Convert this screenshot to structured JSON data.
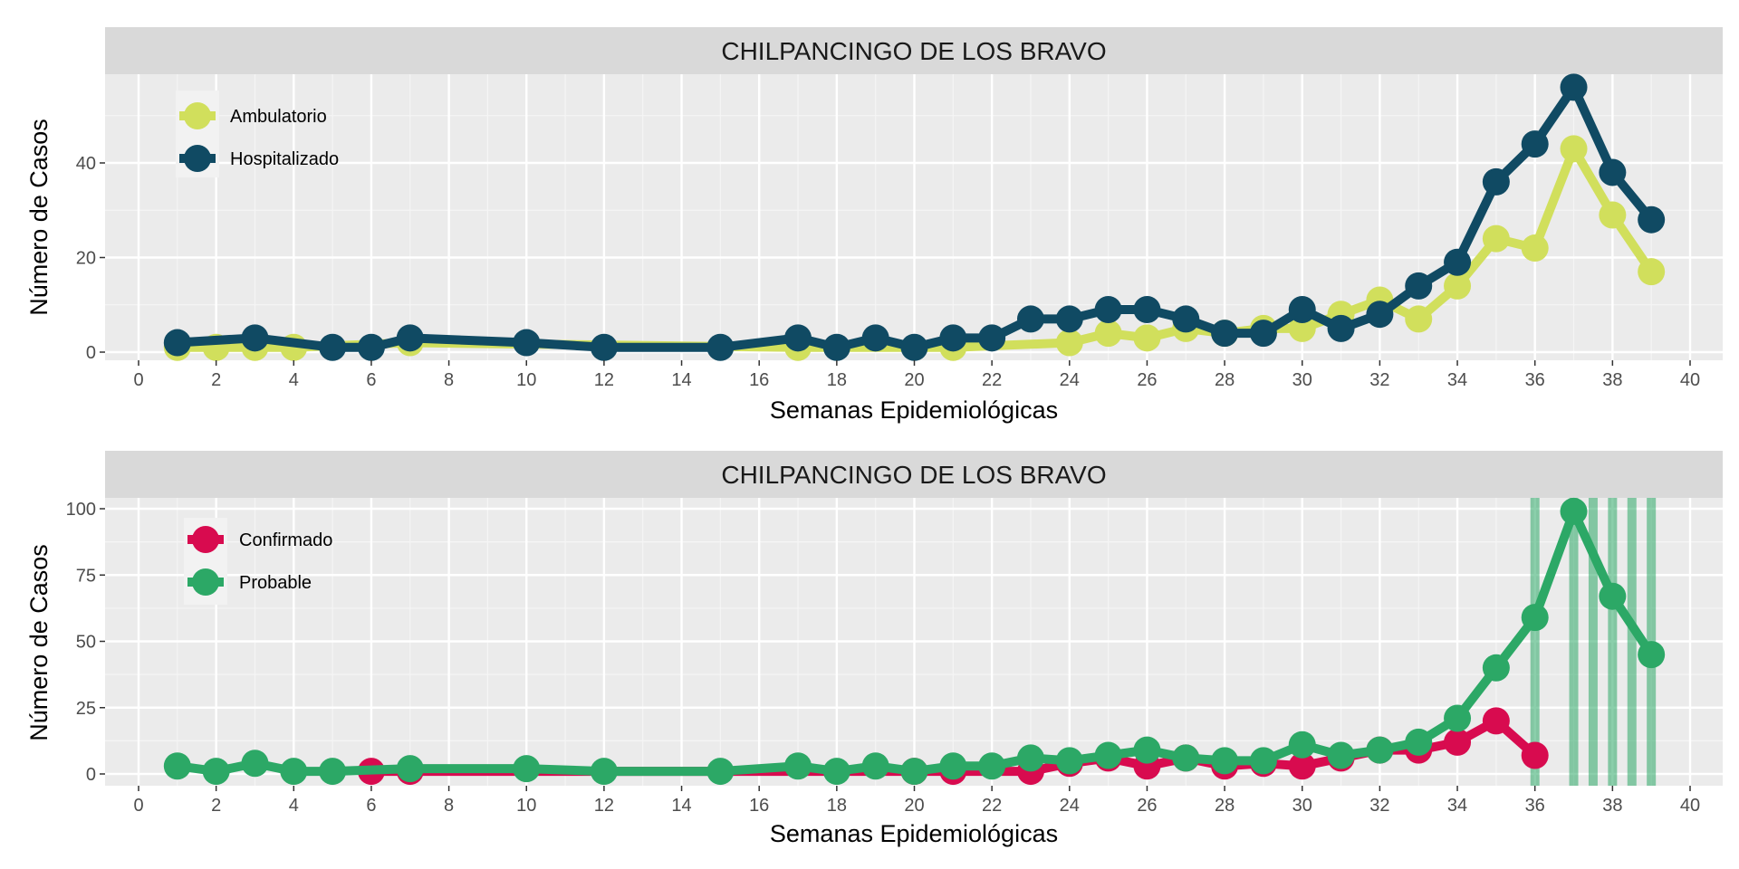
{
  "colors": {
    "ambulatorio": "#d1df5c",
    "hospitalizado": "#104a63",
    "confirmado": "#d80b4f",
    "probable": "#2ca866"
  },
  "chart_data": [
    {
      "type": "line",
      "title": "CHILPANCINGO DE LOS BRAVO",
      "xlabel": "Semanas Epidemiológicas",
      "ylabel": "Número de Casos",
      "xlim": [
        0,
        40
      ],
      "ylim": [
        0,
        56
      ],
      "xticks": [
        0,
        2,
        4,
        6,
        8,
        10,
        12,
        14,
        16,
        18,
        20,
        22,
        24,
        26,
        28,
        30,
        32,
        34,
        36,
        38,
        40
      ],
      "yticks": [
        0,
        20,
        40
      ],
      "grid": true,
      "legend_position": "top-left",
      "series": [
        {
          "name": "Ambulatorio",
          "color_key": "ambulatorio",
          "x": [
            1,
            2,
            3,
            4,
            7,
            17,
            21,
            24,
            25,
            26,
            27,
            28,
            29,
            30,
            31,
            32,
            33,
            34,
            35,
            36,
            37,
            38,
            39
          ],
          "y": [
            1,
            1,
            1,
            1,
            2,
            1,
            1,
            2,
            4,
            3,
            5,
            4,
            5,
            5,
            8,
            11,
            7,
            14,
            24,
            22,
            43,
            29,
            17
          ]
        },
        {
          "name": "Hospitalizado",
          "color_key": "hospitalizado",
          "x": [
            1,
            3,
            5,
            6,
            7,
            10,
            12,
            15,
            17,
            18,
            19,
            20,
            21,
            22,
            23,
            24,
            25,
            26,
            27,
            28,
            29,
            30,
            31,
            32,
            33,
            34,
            35,
            36,
            37,
            38,
            39
          ],
          "y": [
            2,
            3,
            1,
            1,
            3,
            2,
            1,
            1,
            3,
            1,
            3,
            1,
            3,
            3,
            7,
            7,
            9,
            9,
            7,
            4,
            4,
            9,
            5,
            8,
            14,
            19,
            36,
            44,
            56,
            38,
            28
          ]
        }
      ]
    },
    {
      "type": "line",
      "title": "CHILPANCINGO DE LOS BRAVO",
      "xlabel": "Semanas Epidemiológicas",
      "ylabel": "Número de Casos",
      "xlim": [
        0,
        40
      ],
      "ylim": [
        0,
        100
      ],
      "xticks": [
        0,
        2,
        4,
        6,
        8,
        10,
        12,
        14,
        16,
        18,
        20,
        22,
        24,
        26,
        28,
        30,
        32,
        34,
        36,
        38,
        40
      ],
      "yticks": [
        0,
        25,
        50,
        75,
        100
      ],
      "grid": true,
      "legend_position": "top-left",
      "vlines": [
        36,
        37,
        37.5,
        38,
        38.5,
        39
      ],
      "series": [
        {
          "name": "Confirmado",
          "color_key": "confirmado",
          "x": [
            6,
            7,
            20,
            21,
            23,
            24,
            25,
            26,
            27,
            28,
            29,
            30,
            31,
            32,
            33,
            34,
            35,
            36
          ],
          "y": [
            1,
            1,
            1,
            1,
            1,
            4,
            6,
            3,
            6,
            3,
            4,
            3,
            6,
            9,
            9,
            12,
            20,
            7
          ]
        },
        {
          "name": "Probable",
          "color_key": "probable",
          "x": [
            1,
            2,
            3,
            4,
            5,
            7,
            10,
            12,
            15,
            17,
            18,
            19,
            20,
            21,
            22,
            23,
            24,
            25,
            26,
            27,
            28,
            29,
            30,
            31,
            32,
            33,
            34,
            35,
            36,
            37,
            38,
            39
          ],
          "y": [
            3,
            1,
            4,
            1,
            1,
            2,
            2,
            1,
            1,
            3,
            1,
            3,
            1,
            3,
            3,
            6,
            5,
            7,
            9,
            6,
            5,
            5,
            11,
            7,
            9,
            12,
            21,
            40,
            59,
            99,
            67,
            45
          ]
        }
      ]
    }
  ]
}
